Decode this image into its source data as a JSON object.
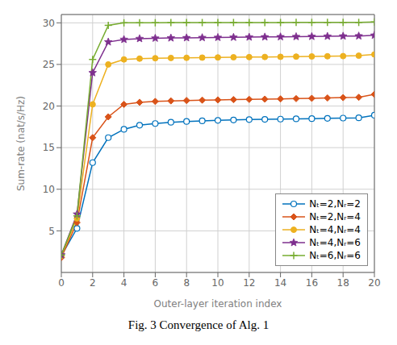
{
  "chart_data": {
    "type": "line",
    "title": "Fig. 3  Convergence of Alg. 1",
    "xlabel": "Outer-layer iteration index",
    "ylabel": "Sum-rate (nat/s/Hz)",
    "xlim": [
      0,
      20
    ],
    "ylim": [
      0,
      31
    ],
    "xticks": [
      0,
      2,
      4,
      6,
      8,
      10,
      12,
      14,
      16,
      18,
      20
    ],
    "yticks": [
      5,
      10,
      15,
      20,
      25,
      30
    ],
    "grid": true,
    "legend": "lower right",
    "x": [
      0,
      1,
      2,
      3,
      4,
      5,
      6,
      7,
      8,
      9,
      10,
      11,
      12,
      13,
      14,
      15,
      16,
      17,
      18,
      19,
      20
    ],
    "series": [
      {
        "name": "Nₜ=2,Nᵣ=2",
        "color": "#0072BD",
        "marker": "open_circle",
        "values": [
          2.0,
          5.3,
          13.2,
          16.2,
          17.2,
          17.7,
          17.9,
          18.05,
          18.15,
          18.22,
          18.28,
          18.33,
          18.37,
          18.4,
          18.43,
          18.46,
          18.49,
          18.52,
          18.55,
          18.58,
          18.9
        ]
      },
      {
        "name": "Nₜ=2,Nᵣ=4",
        "color": "#D95319",
        "marker": "diamond",
        "values": [
          1.8,
          6.0,
          16.2,
          18.7,
          20.2,
          20.45,
          20.55,
          20.62,
          20.67,
          20.71,
          20.74,
          20.77,
          20.8,
          20.83,
          20.86,
          20.89,
          20.93,
          20.97,
          21.01,
          21.05,
          21.4
        ]
      },
      {
        "name": "Nₜ=4,Nᵣ=4",
        "color": "#EDB120",
        "marker": "circle",
        "values": [
          2.0,
          6.5,
          20.2,
          25.0,
          25.6,
          25.7,
          25.75,
          25.78,
          25.8,
          25.82,
          25.84,
          25.86,
          25.88,
          25.9,
          25.92,
          25.94,
          25.96,
          25.98,
          26.0,
          26.05,
          26.2
        ]
      },
      {
        "name": "Nₜ=4,Nᵣ=6",
        "color": "#7E2F8E",
        "marker": "star",
        "values": [
          2.1,
          7.0,
          24.0,
          27.7,
          28.0,
          28.1,
          28.15,
          28.18,
          28.2,
          28.22,
          28.24,
          28.26,
          28.28,
          28.3,
          28.32,
          28.34,
          28.36,
          28.38,
          28.4,
          28.42,
          28.5
        ]
      },
      {
        "name": "Nₜ=6,Nᵣ=6",
        "color": "#77AC30",
        "marker": "plus",
        "values": [
          2.1,
          6.8,
          25.6,
          29.7,
          30.0,
          30.0,
          30.01,
          30.02,
          30.02,
          30.03,
          30.03,
          30.04,
          30.04,
          30.04,
          30.04,
          30.05,
          30.05,
          30.05,
          30.05,
          30.05,
          30.1
        ]
      }
    ]
  }
}
